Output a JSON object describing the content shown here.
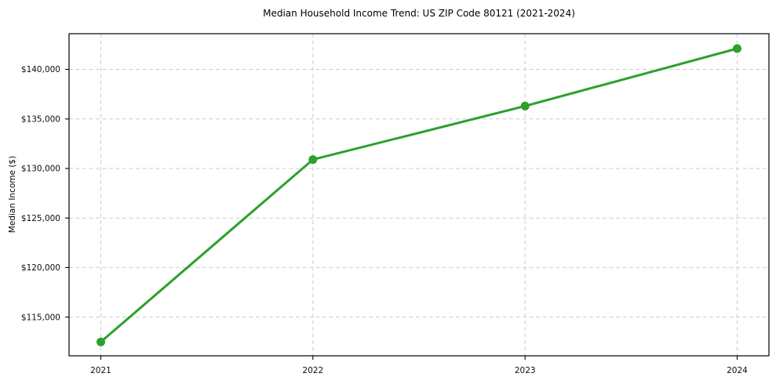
{
  "chart_data": {
    "type": "line",
    "title": "Median Household Income Trend: US ZIP Code 80121 (2021-2024)",
    "xlabel": "",
    "ylabel": "Median Income ($)",
    "x": [
      2021,
      2022,
      2023,
      2024
    ],
    "xtick_labels": [
      "2021",
      "2022",
      "2023",
      "2024"
    ],
    "series": [
      {
        "name": "Median Household Income",
        "values": [
          112500,
          130900,
          136300,
          142100
        ],
        "color": "#2ca02c",
        "marker": "circle"
      }
    ],
    "yticks": [
      115000,
      120000,
      125000,
      130000,
      135000,
      140000
    ],
    "ytick_labels": [
      "$115,000",
      "$120,000",
      "$125,000",
      "$130,000",
      "$135,000",
      "$140,000"
    ],
    "xlim": [
      2020.85,
      2024.15
    ],
    "ylim": [
      111100,
      143600
    ],
    "grid": true,
    "grid_style": "dashed",
    "legend": false
  },
  "colors": {
    "line": "#2ca02c",
    "grid": "#cdcdcd",
    "axis": "#000000",
    "background": "#ffffff",
    "text": "#000000"
  }
}
